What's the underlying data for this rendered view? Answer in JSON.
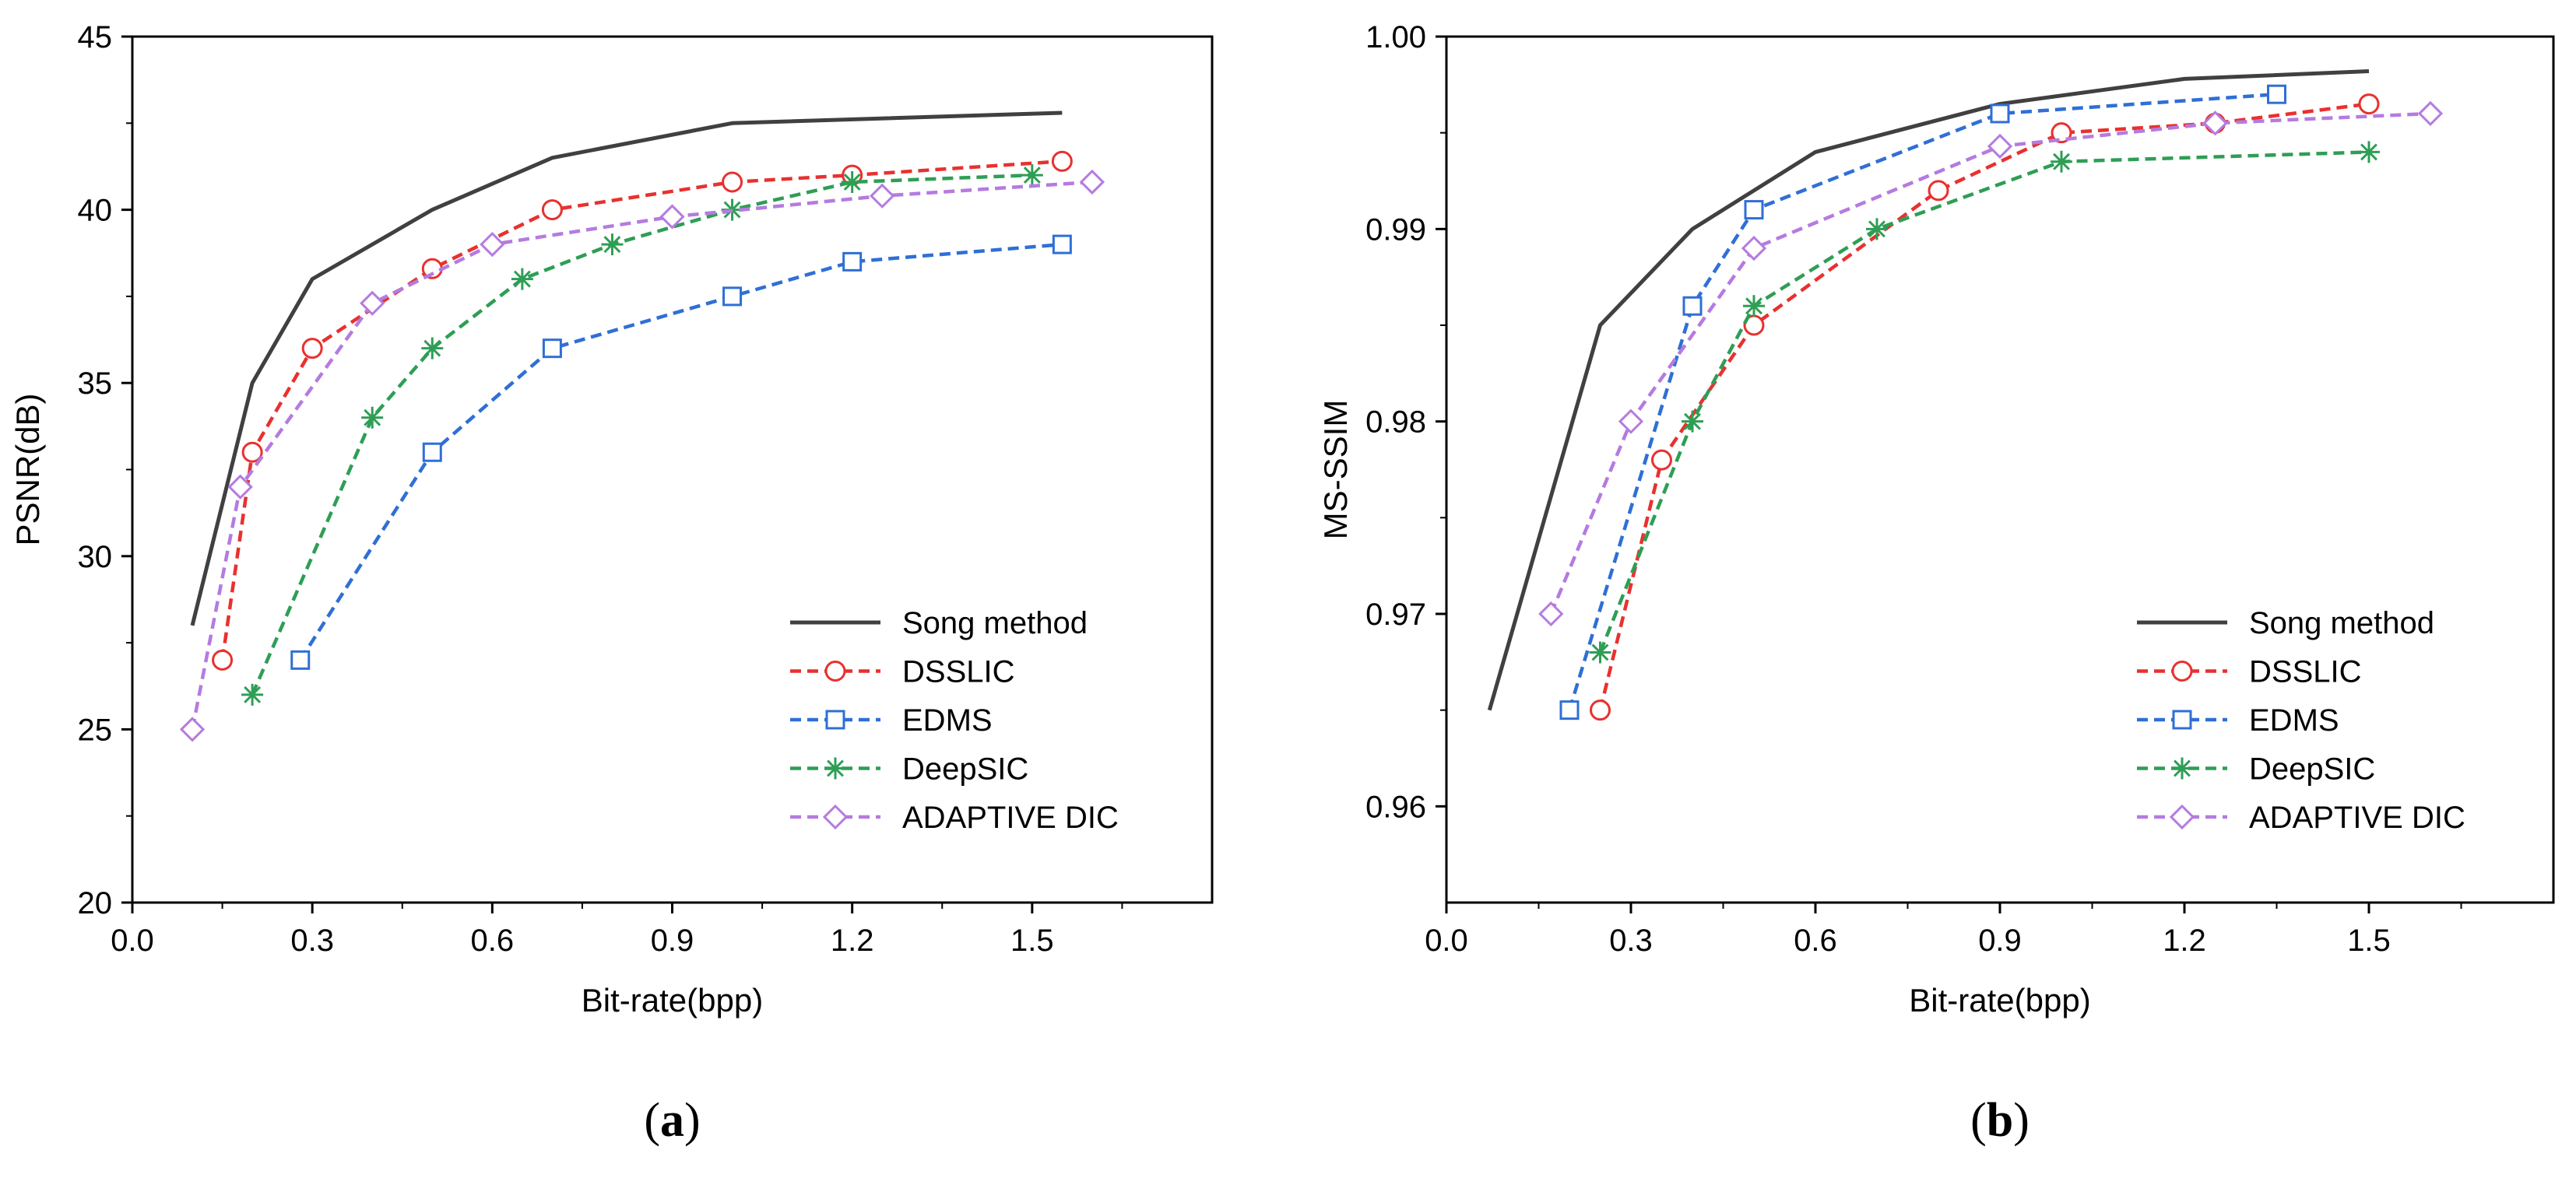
{
  "chart_data": [
    {
      "type": "line",
      "title": "",
      "xlabel": "Bit-rate(bpp)",
      "ylabel": "PSNR(dB)",
      "xlim": [
        0.0,
        1.8
      ],
      "ylim": [
        20,
        45
      ],
      "xticks": [
        "0.0",
        "0.3",
        "0.6",
        "0.9",
        "1.2",
        "1.5"
      ],
      "yticks": [
        "20",
        "25",
        "30",
        "35",
        "40",
        "45"
      ],
      "legend_position": "bottom-right",
      "subfigure_label": "a",
      "series": [
        {
          "name": "Song method",
          "color": "#404040",
          "style": "solid",
          "marker": "none",
          "x": [
            0.1,
            0.2,
            0.3,
            0.5,
            0.7,
            1.0,
            1.55
          ],
          "y": [
            28,
            35,
            38,
            40,
            41.5,
            42.5,
            42.8
          ]
        },
        {
          "name": "DSSLIC",
          "color": "#e8312f",
          "style": "dashed",
          "marker": "circle",
          "x": [
            0.15,
            0.2,
            0.3,
            0.5,
            0.7,
            1.0,
            1.2,
            1.55
          ],
          "y": [
            27,
            33,
            36,
            38.3,
            40,
            40.8,
            41,
            41.4
          ]
        },
        {
          "name": "EDMS",
          "color": "#2f6fd6",
          "style": "dashed",
          "marker": "square",
          "x": [
            0.28,
            0.5,
            0.7,
            1.0,
            1.2,
            1.55
          ],
          "y": [
            27,
            33,
            36,
            37.5,
            38.5,
            39
          ]
        },
        {
          "name": "DeepSIC",
          "color": "#2e9e55",
          "style": "dashed",
          "marker": "star",
          "x": [
            0.2,
            0.4,
            0.5,
            0.65,
            0.8,
            1.0,
            1.2,
            1.5
          ],
          "y": [
            26,
            34,
            36,
            38,
            39,
            40,
            40.8,
            41
          ]
        },
        {
          "name": "ADAPTIVE DIC",
          "color": "#b57be0",
          "style": "dashed",
          "marker": "diamond",
          "x": [
            0.1,
            0.18,
            0.4,
            0.6,
            0.9,
            1.25,
            1.6
          ],
          "y": [
            25,
            32,
            37.3,
            39,
            39.8,
            40.4,
            40.8
          ]
        }
      ]
    },
    {
      "type": "line",
      "title": "",
      "xlabel": "Bit-rate(bpp)",
      "ylabel": "MS-SSIM",
      "xlim": [
        0.0,
        1.8
      ],
      "ylim": [
        0.955,
        1.0
      ],
      "xticks": [
        "0.0",
        "0.3",
        "0.6",
        "0.9",
        "1.2",
        "1.5"
      ],
      "yticks": [
        "0.96",
        "0.97",
        "0.98",
        "0.99",
        "1.00"
      ],
      "legend_position": "bottom-right",
      "subfigure_label": "b",
      "series": [
        {
          "name": "Song method",
          "color": "#404040",
          "style": "solid",
          "marker": "none",
          "x": [
            0.07,
            0.25,
            0.4,
            0.6,
            0.9,
            1.2,
            1.5
          ],
          "y": [
            0.965,
            0.985,
            0.99,
            0.994,
            0.9965,
            0.9978,
            0.9982
          ]
        },
        {
          "name": "DSSLIC",
          "color": "#e8312f",
          "style": "dashed",
          "marker": "circle",
          "x": [
            0.25,
            0.35,
            0.5,
            0.8,
            1.0,
            1.25,
            1.5
          ],
          "y": [
            0.965,
            0.978,
            0.985,
            0.992,
            0.995,
            0.9955,
            0.9965
          ]
        },
        {
          "name": "EDMS",
          "color": "#2f6fd6",
          "style": "dashed",
          "marker": "square",
          "x": [
            0.2,
            0.4,
            0.5,
            0.9,
            1.35
          ],
          "y": [
            0.965,
            0.986,
            0.991,
            0.996,
            0.997
          ]
        },
        {
          "name": "DeepSIC",
          "color": "#2e9e55",
          "style": "dashed",
          "marker": "star",
          "x": [
            0.25,
            0.4,
            0.5,
            0.7,
            1.0,
            1.5
          ],
          "y": [
            0.968,
            0.98,
            0.986,
            0.99,
            0.9935,
            0.994
          ]
        },
        {
          "name": "ADAPTIVE DIC",
          "color": "#b57be0",
          "style": "dashed",
          "marker": "diamond",
          "x": [
            0.17,
            0.3,
            0.5,
            0.9,
            1.25,
            1.6
          ],
          "y": [
            0.97,
            0.98,
            0.989,
            0.9943,
            0.9955,
            0.996
          ]
        }
      ]
    }
  ]
}
